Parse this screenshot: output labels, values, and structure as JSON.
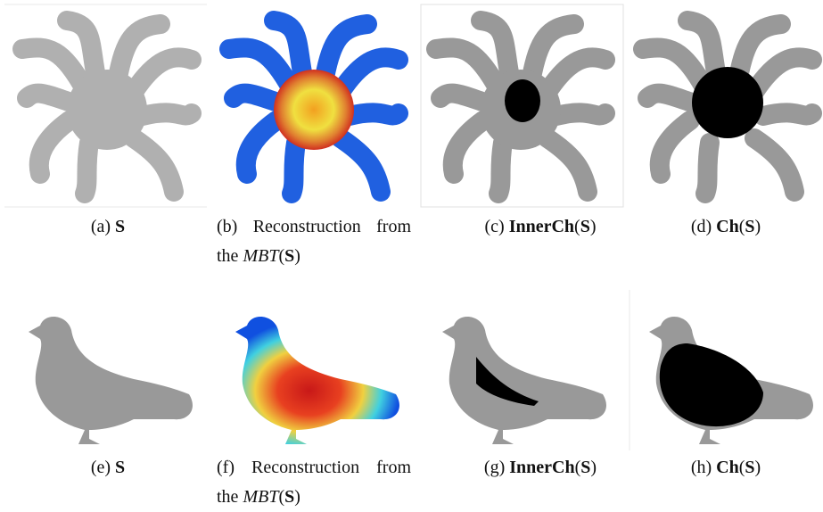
{
  "figure": {
    "captions": [
      {
        "label": "(a)",
        "parts": [
          {
            "text": "S",
            "style": "bold"
          }
        ]
      },
      {
        "label": "(b)",
        "parts": [
          {
            "text": "Reconstruction from the",
            "style": "normal"
          },
          {
            "text": "MBT",
            "style": "italic"
          },
          {
            "text": "(",
            "style": "normal"
          },
          {
            "text": "S",
            "style": "bold"
          },
          {
            "text": ")",
            "style": "normal"
          }
        ]
      },
      {
        "label": "(c)",
        "parts": [
          {
            "text": "InnerCh",
            "style": "bold"
          },
          {
            "text": "(",
            "style": "normal"
          },
          {
            "text": "S",
            "style": "bold"
          },
          {
            "text": ")",
            "style": "normal"
          }
        ]
      },
      {
        "label": "(d)",
        "parts": [
          {
            "text": "Ch",
            "style": "bold"
          },
          {
            "text": "(",
            "style": "normal"
          },
          {
            "text": "S",
            "style": "bold"
          },
          {
            "text": ")",
            "style": "normal"
          }
        ]
      },
      {
        "label": "(e)",
        "parts": [
          {
            "text": "S",
            "style": "bold"
          }
        ]
      },
      {
        "label": "(f)",
        "parts": [
          {
            "text": "Reconstruction from the",
            "style": "normal"
          },
          {
            "text": "MBT",
            "style": "italic"
          },
          {
            "text": "(",
            "style": "normal"
          },
          {
            "text": "S",
            "style": "bold"
          },
          {
            "text": ")",
            "style": "normal"
          }
        ]
      },
      {
        "label": "(g)",
        "parts": [
          {
            "text": "InnerCh",
            "style": "bold"
          },
          {
            "text": "(",
            "style": "normal"
          },
          {
            "text": "S",
            "style": "bold"
          },
          {
            "text": ")",
            "style": "normal"
          }
        ]
      },
      {
        "label": "(h)",
        "parts": [
          {
            "text": "Ch",
            "style": "bold"
          },
          {
            "text": "(",
            "style": "normal"
          },
          {
            "text": "S",
            "style": "bold"
          },
          {
            "text": ")",
            "style": "normal"
          }
        ]
      }
    ]
  }
}
